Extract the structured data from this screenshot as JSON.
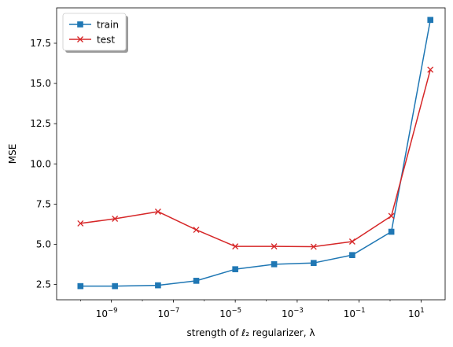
{
  "chart_data": {
    "type": "line",
    "xscale": "log",
    "xlabel": "strength of ℓ₂ regularizer, λ",
    "ylabel": "MSE",
    "xlim": [
      1.7e-11,
      60
    ],
    "ylim": [
      1.55,
      19.7
    ],
    "x_ticks": [
      {
        "value": 1e-09,
        "label_base": "10",
        "label_exp": "−9"
      },
      {
        "value": 1e-07,
        "label_base": "10",
        "label_exp": "−7"
      },
      {
        "value": 1e-05,
        "label_base": "10",
        "label_exp": "−5"
      },
      {
        "value": 0.001,
        "label_base": "10",
        "label_exp": "−3"
      },
      {
        "value": 0.1,
        "label_base": "10",
        "label_exp": "−1"
      },
      {
        "value": 10,
        "label_base": "10",
        "label_exp": "1"
      }
    ],
    "y_ticks": [
      {
        "value": 2.5,
        "label": "2.5"
      },
      {
        "value": 5.0,
        "label": "5.0"
      },
      {
        "value": 7.5,
        "label": "7.5"
      },
      {
        "value": 10.0,
        "label": "10.0"
      },
      {
        "value": 12.5,
        "label": "12.5"
      },
      {
        "value": 15.0,
        "label": "15.0"
      },
      {
        "value": 17.5,
        "label": "17.5"
      }
    ],
    "x": [
      1e-10,
      1.3e-09,
      3.2e-08,
      5.5e-07,
      1e-05,
      0.00018,
      0.0034,
      0.06,
      1.1,
      20
    ],
    "series": [
      {
        "name": "train",
        "color": "#1f77b4",
        "marker": "square",
        "values": [
          2.4,
          2.4,
          2.45,
          2.73,
          3.45,
          3.76,
          3.84,
          4.33,
          5.78,
          18.95
        ]
      },
      {
        "name": "test",
        "color": "#d62728",
        "marker": "x",
        "values": [
          6.3,
          6.59,
          7.03,
          5.9,
          4.87,
          4.87,
          4.85,
          5.17,
          6.76,
          15.86
        ]
      }
    ],
    "legend": {
      "position": "top-left"
    },
    "grid": false
  }
}
